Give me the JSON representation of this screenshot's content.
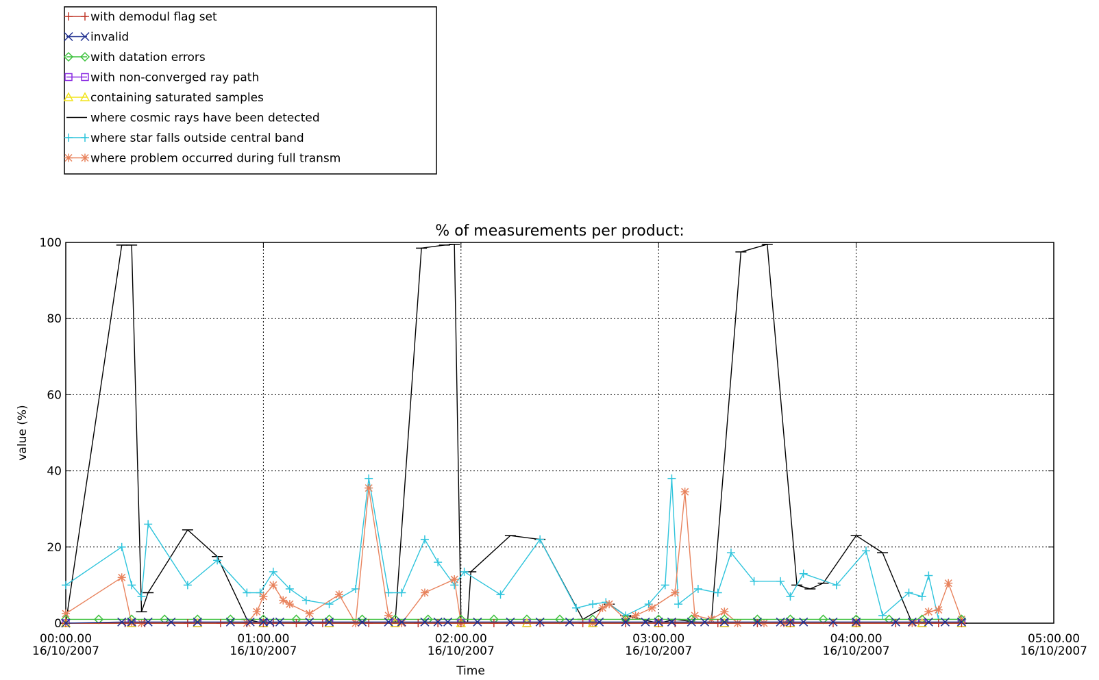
{
  "chart_data": {
    "type": "line",
    "title": "% of measurements per product:",
    "xlabel": "Time",
    "ylabel": "value (%)",
    "ylim": [
      0,
      100
    ],
    "yticks": [
      0,
      20,
      40,
      60,
      80,
      100
    ],
    "xlim": [
      "2007-10-16 00:00",
      "2007-10-16 05:00"
    ],
    "xticks": [
      {
        "time": "2007-10-16 00:00",
        "line1": "00:00.00",
        "line2": "16/10/2007"
      },
      {
        "time": "2007-10-16 01:00",
        "line1": "01:00.00",
        "line2": "16/10/2007"
      },
      {
        "time": "2007-10-16 02:00",
        "line1": "02:00.00",
        "line2": "16/10/2007"
      },
      {
        "time": "2007-10-16 03:00",
        "line1": "03:00.00",
        "line2": "16/10/2007"
      },
      {
        "time": "2007-10-16 04:00",
        "line1": "04:00.00",
        "line2": "16/10/2007"
      },
      {
        "time": "2007-10-16 05:00",
        "line1": "05:00.00",
        "line2": "16/10/2007"
      }
    ],
    "grid": true,
    "legend_position": "top-left",
    "series": [
      {
        "name": "with demodul flag set",
        "color": "#c0392b",
        "marker": "plus",
        "x": [
          "00:00",
          "00:18",
          "00:24",
          "00:37",
          "00:47",
          "00:55",
          "01:00",
          "01:03",
          "01:10",
          "01:18",
          "01:32",
          "01:47",
          "01:53",
          "02:00",
          "02:10",
          "02:24",
          "02:37",
          "02:50",
          "03:00",
          "03:05",
          "03:18",
          "03:30",
          "03:40",
          "03:53",
          "04:00",
          "04:12",
          "04:25",
          "04:32"
        ],
        "y": [
          0,
          0,
          0,
          0,
          0,
          0,
          0,
          0,
          0,
          0,
          0,
          0,
          0,
          0,
          0,
          0,
          0,
          0,
          0,
          0,
          0,
          0,
          0,
          0,
          0,
          0,
          0,
          0
        ]
      },
      {
        "name": "invalid",
        "color": "#1f2f8f",
        "marker": "x",
        "x": [
          "00:00",
          "00:17",
          "00:20",
          "00:25",
          "00:32",
          "00:40",
          "00:50",
          "00:56",
          "01:00",
          "01:02",
          "01:05",
          "01:14",
          "01:20",
          "01:30",
          "01:38",
          "01:42",
          "01:49",
          "01:53",
          "01:56",
          "02:05",
          "02:15",
          "02:24",
          "02:33",
          "02:42",
          "02:50",
          "02:56",
          "03:00",
          "03:04",
          "03:10",
          "03:14",
          "03:20",
          "03:30",
          "03:37",
          "03:40",
          "03:44",
          "03:53",
          "04:00",
          "04:12",
          "04:17",
          "04:22",
          "04:27",
          "04:32"
        ],
        "y": [
          0,
          0.3,
          0.3,
          0.3,
          0.3,
          0.3,
          0.3,
          0.3,
          0.3,
          0.3,
          0.3,
          0.3,
          0.3,
          0.3,
          0.3,
          0.3,
          0.3,
          0.3,
          0.3,
          0.3,
          0.3,
          0.3,
          0.3,
          0.3,
          0.3,
          0.3,
          0.3,
          0.3,
          0.3,
          0.3,
          0.3,
          0.3,
          0.3,
          0.3,
          0.3,
          0.3,
          0.3,
          0.3,
          0.3,
          0.3,
          0.3,
          0.3
        ]
      },
      {
        "name": "with datation errors",
        "color": "#3ec23e",
        "marker": "diamond",
        "x": [
          "00:00",
          "00:10",
          "00:20",
          "00:30",
          "00:40",
          "00:50",
          "01:00",
          "01:10",
          "01:20",
          "01:30",
          "01:40",
          "01:50",
          "02:00",
          "02:10",
          "02:20",
          "02:30",
          "02:40",
          "02:50",
          "03:00",
          "03:10",
          "03:20",
          "03:30",
          "03:40",
          "03:50",
          "04:00",
          "04:10",
          "04:20",
          "04:32"
        ],
        "y": [
          1,
          1,
          1,
          1,
          1,
          1,
          1,
          1,
          1,
          1,
          1,
          1,
          1,
          1,
          1,
          1,
          1,
          1,
          1,
          1,
          1,
          1,
          1,
          1,
          1,
          1,
          1,
          1
        ]
      },
      {
        "name": "with non-converged ray path",
        "color": "#8a2be2",
        "marker": "square",
        "x": [
          "00:00",
          "00:20",
          "00:40",
          "01:00",
          "01:20",
          "01:40",
          "02:00",
          "02:20",
          "02:40",
          "03:00",
          "03:20",
          "03:40",
          "04:00",
          "04:20",
          "04:32"
        ],
        "y": [
          0,
          0,
          0,
          0,
          0,
          0,
          0,
          0,
          0,
          0,
          0,
          0,
          0,
          0,
          0
        ]
      },
      {
        "name": "containing saturated samples",
        "color": "#f2e41b",
        "marker": "triangle",
        "x": [
          "00:00",
          "00:20",
          "00:40",
          "01:00",
          "01:20",
          "01:40",
          "02:00",
          "02:20",
          "02:40",
          "03:00",
          "03:20",
          "03:40",
          "04:00",
          "04:20",
          "04:32"
        ],
        "y": [
          0,
          0,
          0,
          0,
          0,
          0,
          0,
          0,
          0,
          0,
          0,
          0,
          0,
          0,
          0
        ]
      },
      {
        "name": "where cosmic rays have been detected",
        "color": "#000000",
        "marker": "hbar",
        "x": [
          "00:00",
          "00:17",
          "00:20",
          "00:23",
          "00:25",
          "00:37",
          "00:46",
          "00:55",
          "01:00",
          "01:03",
          "01:40",
          "01:48",
          "01:55",
          "01:58",
          "02:00",
          "02:02",
          "02:03",
          "02:15",
          "02:24",
          "02:37",
          "02:45",
          "02:50",
          "03:00",
          "03:05",
          "03:14",
          "03:16",
          "03:25",
          "03:33",
          "03:42",
          "03:46",
          "03:50",
          "04:00",
          "04:08",
          "04:17",
          "04:22",
          "04:30",
          "04:32"
        ],
        "y": [
          0,
          99.3,
          99.3,
          3,
          8,
          24.5,
          17.5,
          1,
          0,
          0,
          0,
          98.5,
          99.3,
          99.5,
          1,
          0,
          13.5,
          23,
          22,
          1,
          5,
          2,
          0,
          1,
          0,
          0,
          97.5,
          99.5,
          10,
          9,
          10.5,
          23,
          18.5,
          0,
          0,
          0,
          0
        ]
      },
      {
        "name": "where star falls outside central band",
        "color": "#2ec4dc",
        "marker": "plus",
        "x": [
          "00:00",
          "00:17",
          "00:20",
          "00:23",
          "00:25",
          "00:37",
          "00:46",
          "00:55",
          "00:59",
          "01:03",
          "01:08",
          "01:13",
          "01:20",
          "01:28",
          "01:32",
          "01:38",
          "01:42",
          "01:49",
          "01:53",
          "01:58",
          "02:01",
          "02:12",
          "02:24",
          "02:35",
          "02:40",
          "02:44",
          "02:50",
          "02:57",
          "03:02",
          "03:04",
          "03:06",
          "03:12",
          "03:18",
          "03:22",
          "03:29",
          "03:37",
          "03:40",
          "03:44",
          "03:54",
          "04:03",
          "04:08",
          "04:16",
          "04:20",
          "04:22",
          "04:25",
          "04:32"
        ],
        "y": [
          10,
          20,
          10,
          7,
          26,
          10,
          16.5,
          8,
          8,
          13.5,
          9,
          6,
          5,
          9,
          38,
          8,
          8,
          22,
          16,
          10,
          13.5,
          7.5,
          22,
          4,
          5,
          5.5,
          2,
          5,
          10,
          38,
          5,
          9,
          8,
          18.5,
          11,
          11,
          7,
          13,
          10,
          19,
          2,
          8,
          7,
          12.5,
          1,
          1
        ]
      },
      {
        "name": "where problem occurred during full transm",
        "color": "#e8825c",
        "marker": "star",
        "x": [
          "00:00",
          "00:17",
          "00:20",
          "00:23",
          "00:55",
          "00:58",
          "01:00",
          "01:03",
          "01:06",
          "01:08",
          "01:14",
          "01:23",
          "01:28",
          "01:32",
          "01:38",
          "01:42",
          "01:49",
          "01:58",
          "02:00",
          "02:40",
          "02:43",
          "02:45",
          "02:50",
          "02:53",
          "02:58",
          "03:05",
          "03:08",
          "03:11",
          "03:16",
          "03:20",
          "03:24",
          "03:32",
          "03:38",
          "04:00",
          "04:17",
          "04:22",
          "04:25",
          "04:28",
          "04:32"
        ],
        "y": [
          2.5,
          12,
          0,
          0,
          0,
          3,
          7,
          10,
          6,
          5,
          2.5,
          7.5,
          0,
          35.5,
          2,
          0,
          8,
          11.5,
          0,
          0,
          4,
          5,
          1,
          2,
          4,
          8,
          34.5,
          2,
          1,
          3,
          0,
          0,
          0,
          0,
          0,
          3,
          3.5,
          10.5,
          1
        ]
      }
    ]
  }
}
